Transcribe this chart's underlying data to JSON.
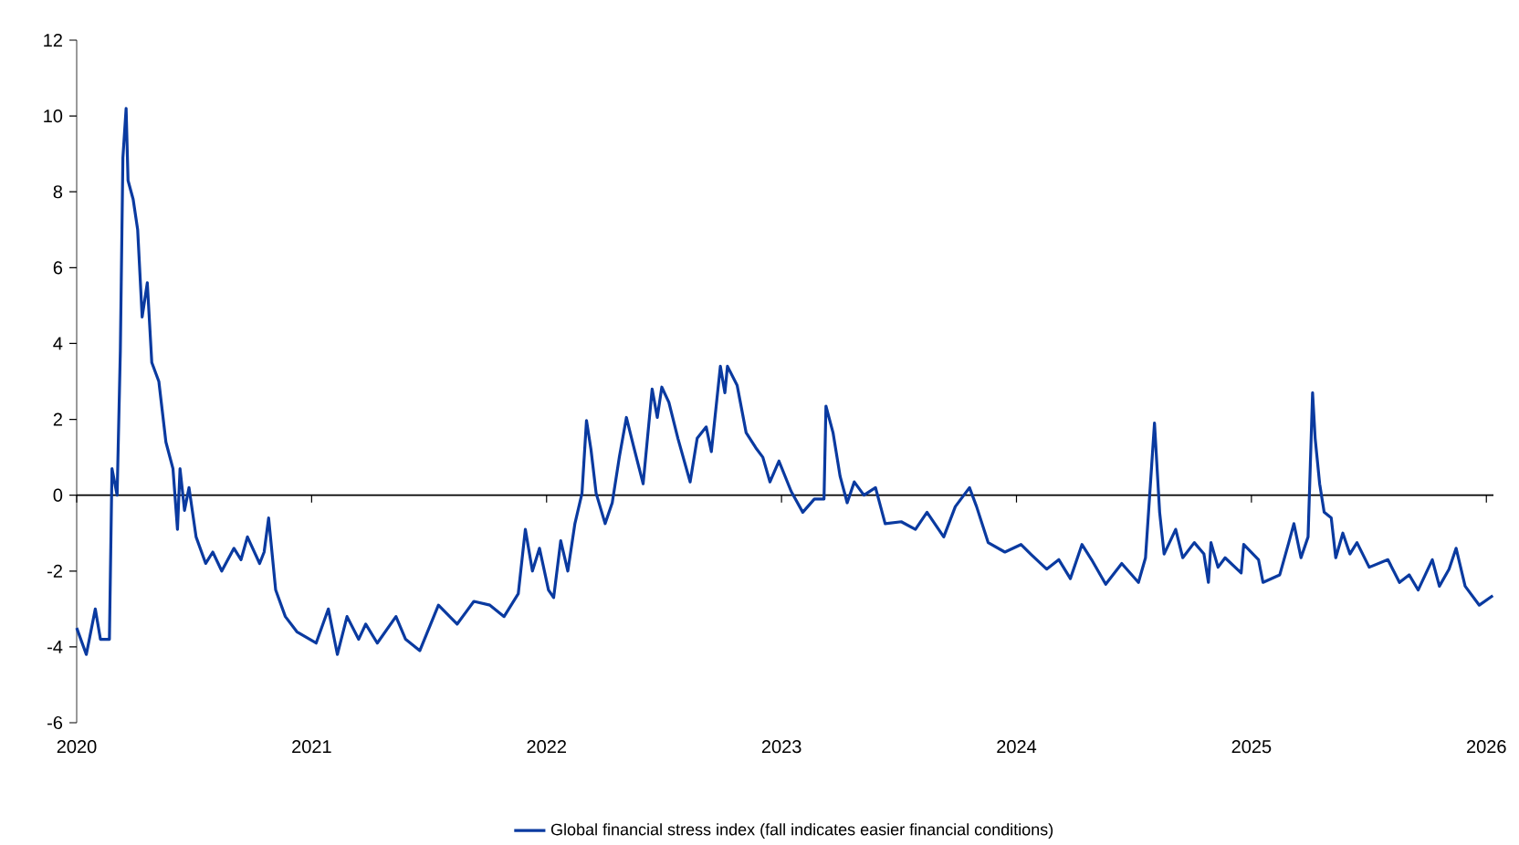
{
  "chart_data": {
    "type": "line",
    "x": [
      "2020-01-01",
      "2020-01-16",
      "2020-01-30",
      "2020-02-07",
      "2020-02-21",
      "2020-02-25",
      "2020-03-04",
      "2020-03-09",
      "2020-03-13",
      "2020-03-18",
      "2020-03-21",
      "2020-03-29",
      "2020-04-05",
      "2020-04-12",
      "2020-04-20",
      "2020-04-27",
      "2020-05-08",
      "2020-05-19",
      "2020-05-30",
      "2020-06-06",
      "2020-06-10",
      "2020-06-17",
      "2020-06-24",
      "2020-07-05",
      "2020-07-20",
      "2020-07-31",
      "2020-08-14",
      "2020-09-02",
      "2020-09-13",
      "2020-09-23",
      "2020-10-12",
      "2020-10-19",
      "2020-10-26",
      "2020-11-06",
      "2020-11-21",
      "2020-12-09",
      "2021-01-08",
      "2021-01-27",
      "2021-02-10",
      "2021-02-25",
      "2021-03-15",
      "2021-03-26",
      "2021-04-13",
      "2021-05-12",
      "2021-05-27",
      "2021-06-18",
      "2021-07-17",
      "2021-08-15",
      "2021-09-10",
      "2021-10-05",
      "2021-10-27",
      "2021-11-18",
      "2021-11-29",
      "2021-12-10",
      "2021-12-21",
      "2022-01-04",
      "2022-01-12",
      "2022-01-23",
      "2022-02-03",
      "2022-02-14",
      "2022-02-25",
      "2022-03-04",
      "2022-03-11",
      "2022-03-19",
      "2022-04-02",
      "2022-04-13",
      "2022-04-24",
      "2022-05-05",
      "2022-05-16",
      "2022-05-31",
      "2022-06-14",
      "2022-06-22",
      "2022-06-29",
      "2022-07-10",
      "2022-07-24",
      "2022-08-12",
      "2022-08-23",
      "2022-09-06",
      "2022-09-14",
      "2022-09-28",
      "2022-10-05",
      "2022-10-09",
      "2022-10-24",
      "2022-11-07",
      "2022-11-22",
      "2022-12-03",
      "2022-12-14",
      "2022-12-28",
      "2023-01-16",
      "2023-02-03",
      "2023-02-21",
      "2023-03-08",
      "2023-03-11",
      "2023-03-22",
      "2023-04-02",
      "2023-04-13",
      "2023-04-24",
      "2023-05-09",
      "2023-05-27",
      "2023-06-11",
      "2023-07-06",
      "2023-07-28",
      "2023-08-15",
      "2023-09-10",
      "2023-09-28",
      "2023-10-20",
      "2023-10-31",
      "2023-11-18",
      "2023-12-14",
      "2024-01-08",
      "2024-01-23",
      "2024-02-17",
      "2024-03-07",
      "2024-03-25",
      "2024-04-12",
      "2024-04-27",
      "2024-05-19",
      "2024-06-13",
      "2024-07-09",
      "2024-07-20",
      "2024-08-03",
      "2024-08-11",
      "2024-08-18",
      "2024-09-05",
      "2024-09-16",
      "2024-10-04",
      "2024-10-19",
      "2024-10-26",
      "2024-10-30",
      "2024-11-10",
      "2024-11-21",
      "2024-12-16",
      "2024-12-20",
      "2025-01-12",
      "2025-01-19",
      "2025-02-14",
      "2025-02-28",
      "2025-03-08",
      "2025-03-19",
      "2025-03-30",
      "2025-04-06",
      "2025-04-10",
      "2025-04-17",
      "2025-04-24",
      "2025-05-05",
      "2025-05-12",
      "2025-05-23",
      "2025-06-03",
      "2025-06-14",
      "2025-07-03",
      "2025-08-01",
      "2025-08-19",
      "2025-09-03",
      "2025-09-17",
      "2025-10-09",
      "2025-10-20",
      "2025-11-04",
      "2025-11-15",
      "2025-11-29",
      "2025-12-21",
      "2026-01-11"
    ],
    "series": [
      {
        "name": "Global financial stress index (fall indicates easier financial conditions)",
        "color": "#0a3aa0",
        "values": [
          -3.5,
          -4.2,
          -3.0,
          -3.8,
          -3.8,
          0.7,
          0.0,
          3.8,
          8.9,
          10.2,
          8.3,
          7.8,
          7.0,
          4.7,
          5.6,
          3.5,
          3.0,
          1.4,
          0.7,
          -0.9,
          0.7,
          -0.4,
          0.2,
          -1.1,
          -1.8,
          -1.5,
          -2.0,
          -1.4,
          -1.7,
          -1.1,
          -1.8,
          -1.5,
          -0.6,
          -2.5,
          -3.2,
          -3.6,
          -3.9,
          -3.0,
          -4.2,
          -3.2,
          -3.8,
          -3.4,
          -3.9,
          -3.2,
          -3.8,
          -4.1,
          -2.9,
          -3.4,
          -2.8,
          -2.9,
          -3.2,
          -2.6,
          -0.9,
          -2.0,
          -1.4,
          -2.5,
          -2.7,
          -1.2,
          -2.0,
          -0.75,
          0.05,
          1.97,
          1.2,
          0.05,
          -0.75,
          -0.2,
          1.0,
          2.05,
          1.3,
          0.3,
          2.8,
          2.05,
          2.85,
          2.45,
          1.5,
          0.35,
          1.5,
          1.8,
          1.15,
          3.4,
          2.7,
          3.4,
          2.9,
          1.65,
          1.25,
          1.0,
          0.35,
          0.9,
          0.1,
          -0.45,
          -0.1,
          -0.1,
          2.35,
          1.65,
          0.5,
          -0.2,
          0.35,
          0.0,
          0.2,
          -0.75,
          -0.7,
          -0.9,
          -0.45,
          -1.1,
          -0.3,
          0.2,
          -0.3,
          -1.25,
          -1.5,
          -1.3,
          -1.55,
          -1.95,
          -1.7,
          -2.2,
          -1.3,
          -1.7,
          -2.35,
          -1.8,
          -2.3,
          -1.65,
          1.9,
          -0.45,
          -1.55,
          -0.9,
          -1.65,
          -1.25,
          -1.55,
          -2.3,
          -1.25,
          -1.9,
          -1.65,
          -2.05,
          -1.3,
          -1.7,
          -2.3,
          -2.1,
          -1.25,
          -0.75,
          -1.65,
          -1.1,
          2.7,
          1.5,
          0.3,
          -0.45,
          -0.6,
          -1.65,
          -1.0,
          -1.55,
          -1.25,
          -1.9,
          -1.7,
          -2.3,
          -2.1,
          -2.5,
          -1.7,
          -2.4,
          -1.95,
          -1.4,
          -2.4,
          -2.9,
          -2.65
        ]
      }
    ],
    "xlim": [
      "2020-01-01",
      "2026-01-12"
    ],
    "xticks": [
      "2020",
      "2021",
      "2022",
      "2023",
      "2024",
      "2025",
      "2026"
    ],
    "ylim": [
      -6,
      12
    ],
    "yticks": [
      -6,
      -4,
      -2,
      0,
      2,
      4,
      6,
      8,
      10,
      12
    ],
    "ref_lines": [
      {
        "axis": "y",
        "value": 0,
        "color": "#000000"
      }
    ],
    "grid": false,
    "legend": "bottom",
    "line_style": "solid",
    "marker": "none"
  }
}
